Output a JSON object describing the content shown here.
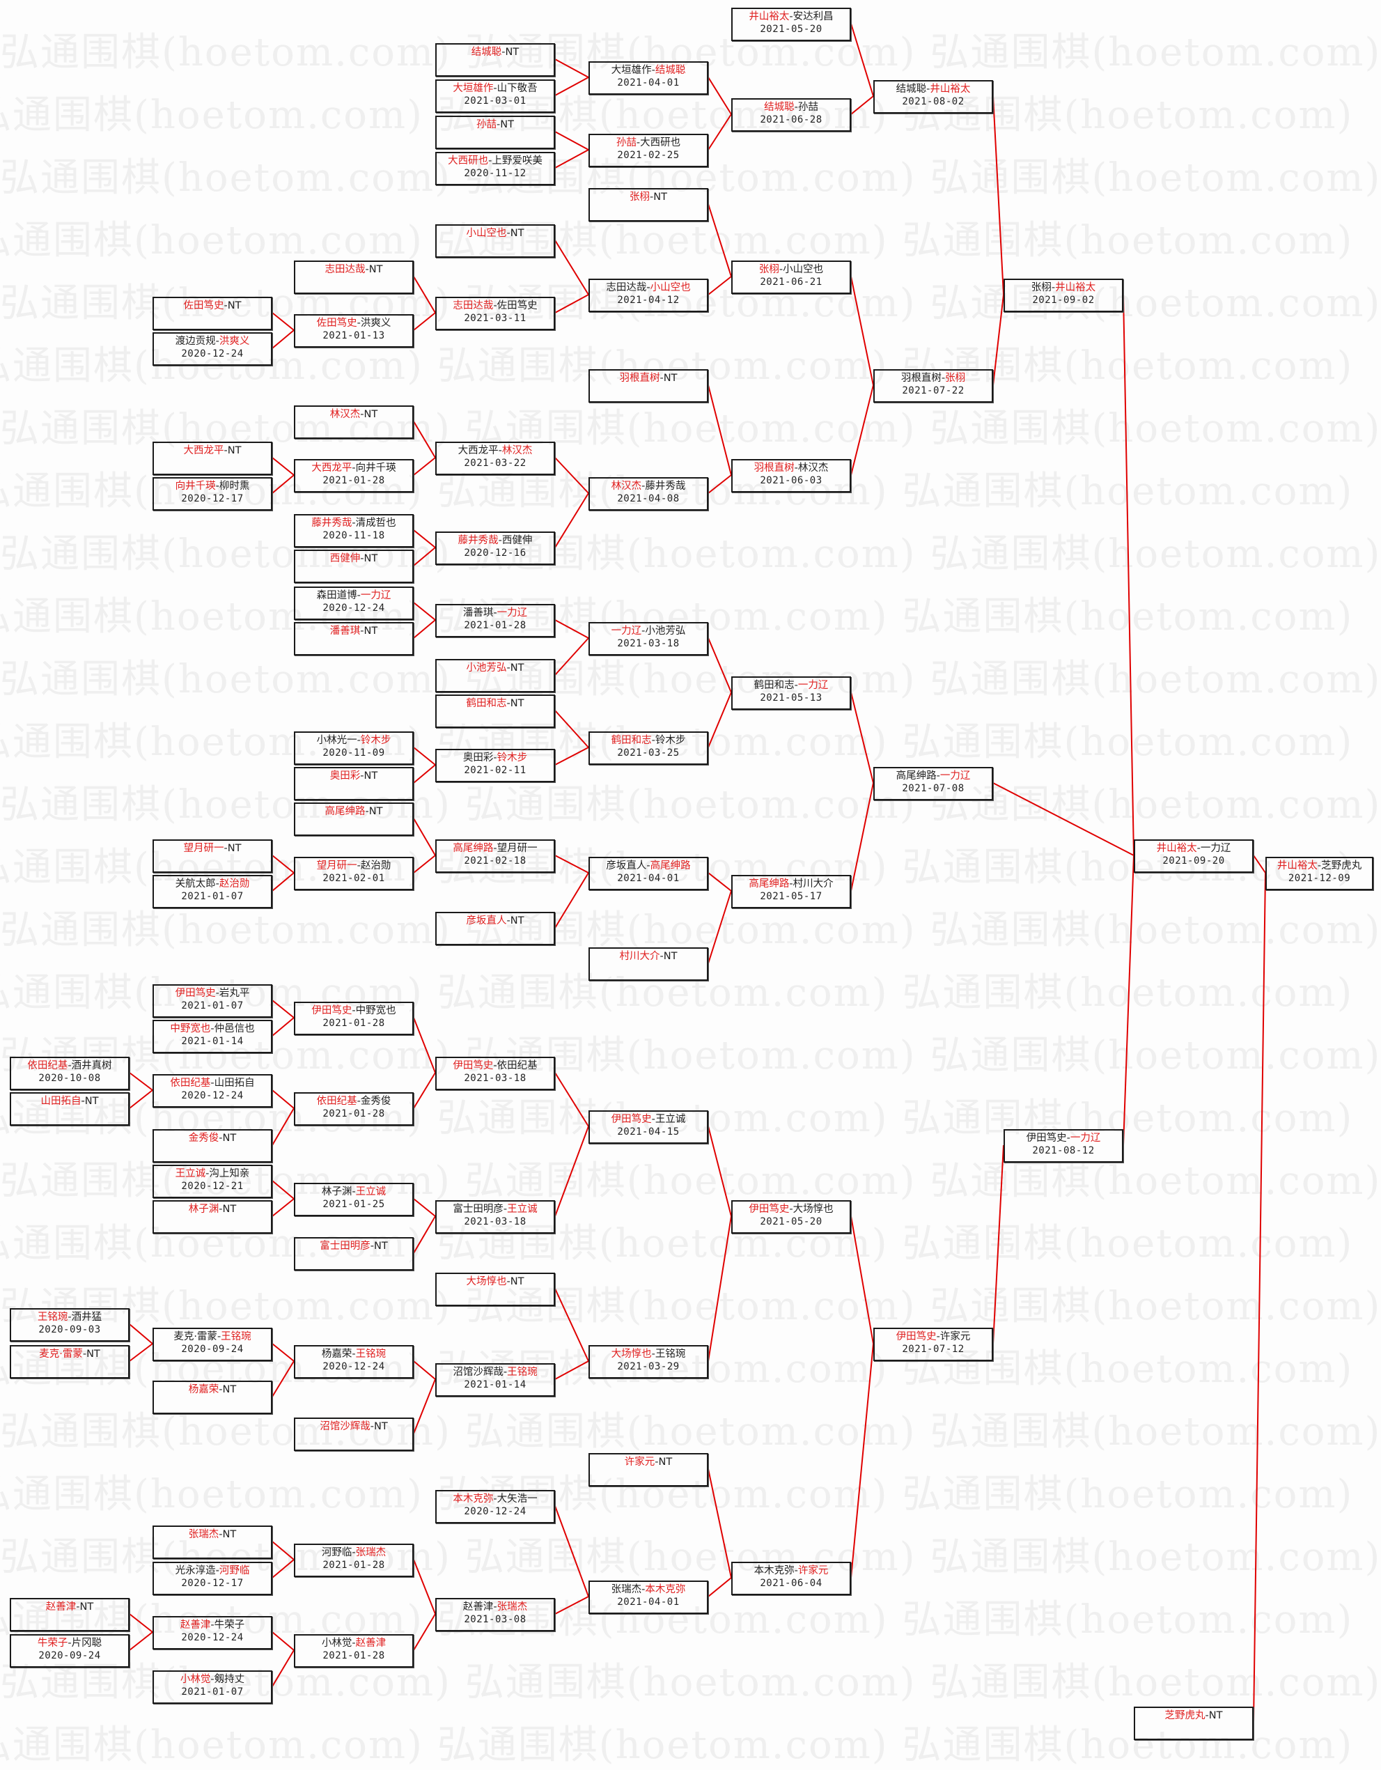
{
  "watermark": "弘通围棋(hoetom.com)",
  "colors": {
    "winner": "#e02020",
    "connector": "#e00000",
    "border": "#1a1a1a",
    "text": "#222222"
  },
  "boxes": [
    {
      "p1": "井山裕太",
      "p2": "安达利昌",
      "w": 1,
      "date": "2021-05-20"
    },
    {
      "p1": "结城聪",
      "p2": "NT",
      "w": 1
    },
    {
      "p1": "大垣雄作",
      "p2": "山下敬吾",
      "w": 1,
      "date": "2021-03-01"
    },
    {
      "p1": "孙喆",
      "p2": "NT",
      "w": 1
    },
    {
      "p1": "大西研也",
      "p2": "上野爱咲美",
      "w": 1,
      "date": "2020-11-12"
    },
    {
      "p1": "大垣雄作",
      "p2": "结城聪",
      "w": 2,
      "date": "2021-04-01"
    },
    {
      "p1": "孙喆",
      "p2": "大西研也",
      "w": 1,
      "date": "2021-02-25"
    },
    {
      "p1": "结城聪",
      "p2": "孙喆",
      "w": 1,
      "date": "2021-06-28"
    },
    {
      "p1": "结城聪",
      "p2": "井山裕太",
      "w": 2,
      "date": "2021-08-02"
    },
    {
      "p1": "张栩",
      "p2": "NT",
      "w": 1
    },
    {
      "p1": "小山空也",
      "p2": "NT",
      "w": 1
    },
    {
      "p1": "志田达哉",
      "p2": "NT",
      "w": 1
    },
    {
      "p1": "佐田笃史",
      "p2": "NT",
      "w": 1
    },
    {
      "p1": "渡边贡规",
      "p2": "洪爽义",
      "w": 2,
      "date": "2020-12-24"
    },
    {
      "p1": "佐田笃史",
      "p2": "洪爽义",
      "w": 1,
      "date": "2021-01-13"
    },
    {
      "p1": "志田达哉",
      "p2": "佐田笃史",
      "w": 1,
      "date": "2021-03-11"
    },
    {
      "p1": "志田达哉",
      "p2": "小山空也",
      "w": 2,
      "date": "2021-04-12"
    },
    {
      "p1": "张栩",
      "p2": "小山空也",
      "w": 1,
      "date": "2021-06-21"
    },
    {
      "p1": "张栩",
      "p2": "井山裕太",
      "w": 2,
      "date": "2021-09-02"
    },
    {
      "p1": "羽根直树",
      "p2": "NT",
      "w": 1
    },
    {
      "p1": "林汉杰",
      "p2": "NT",
      "w": 1
    },
    {
      "p1": "大西龙平",
      "p2": "NT",
      "w": 1
    },
    {
      "p1": "向井千瑛",
      "p2": "柳时熏",
      "w": 1,
      "date": "2020-12-17"
    },
    {
      "p1": "大西龙平",
      "p2": "向井千瑛",
      "w": 1,
      "date": "2021-01-28"
    },
    {
      "p1": "大西龙平",
      "p2": "林汉杰",
      "w": 2,
      "date": "2021-03-22"
    },
    {
      "p1": "藤井秀哉",
      "p2": "清成哲也",
      "w": 1,
      "date": "2020-11-18"
    },
    {
      "p1": "西健伸",
      "p2": "NT",
      "w": 1
    },
    {
      "p1": "藤井秀哉",
      "p2": "西健伸",
      "w": 1,
      "date": "2020-12-16"
    },
    {
      "p1": "林汉杰",
      "p2": "藤井秀哉",
      "w": 1,
      "date": "2021-04-08"
    },
    {
      "p1": "羽根直树",
      "p2": "林汉杰",
      "w": 1,
      "date": "2021-06-03"
    },
    {
      "p1": "羽根直树",
      "p2": "张栩",
      "w": 2,
      "date": "2021-07-22"
    },
    {
      "p1": "森田道博",
      "p2": "一力辽",
      "w": 2,
      "date": "2020-12-24"
    },
    {
      "p1": "潘善琪",
      "p2": "NT",
      "w": 1
    },
    {
      "p1": "潘善琪",
      "p2": "一力辽",
      "w": 2,
      "date": "2021-01-28"
    },
    {
      "p1": "小池芳弘",
      "p2": "NT",
      "w": 1
    },
    {
      "p1": "一力辽",
      "p2": "小池芳弘",
      "w": 1,
      "date": "2021-03-18"
    },
    {
      "p1": "鹤田和志",
      "p2": "NT",
      "w": 1
    },
    {
      "p1": "小林光一",
      "p2": "铃木步",
      "w": 2,
      "date": "2020-11-09"
    },
    {
      "p1": "奥田彩",
      "p2": "NT",
      "w": 1
    },
    {
      "p1": "奥田彩",
      "p2": "铃木步",
      "w": 2,
      "date": "2021-02-11"
    },
    {
      "p1": "鹤田和志",
      "p2": "铃木步",
      "w": 1,
      "date": "2021-03-25"
    },
    {
      "p1": "鹤田和志",
      "p2": "一力辽",
      "w": 2,
      "date": "2021-05-13"
    },
    {
      "p1": "高尾绅路",
      "p2": "NT",
      "w": 1
    },
    {
      "p1": "望月研一",
      "p2": "NT",
      "w": 1
    },
    {
      "p1": "关航太郎",
      "p2": "赵治勋",
      "w": 2,
      "date": "2021-01-07"
    },
    {
      "p1": "望月研一",
      "p2": "赵治勋",
      "w": 1,
      "date": "2021-02-01"
    },
    {
      "p1": "高尾绅路",
      "p2": "望月研一",
      "w": 1,
      "date": "2021-02-18"
    },
    {
      "p1": "彦坂直人",
      "p2": "NT",
      "w": 1
    },
    {
      "p1": "彦坂直人",
      "p2": "高尾绅路",
      "w": 2,
      "date": "2021-04-01"
    },
    {
      "p1": "村川大介",
      "p2": "NT",
      "w": 1
    },
    {
      "p1": "高尾绅路",
      "p2": "村川大介",
      "w": 1,
      "date": "2021-05-17"
    },
    {
      "p1": "高尾绅路",
      "p2": "一力辽",
      "w": 2,
      "date": "2021-07-08"
    },
    {
      "p1": "井山裕太",
      "p2": "一力辽",
      "w": 1,
      "date": "2021-09-20"
    },
    {
      "p1": "井山裕太",
      "p2": "芝野虎丸",
      "w": 1,
      "date": "2021-12-09"
    },
    {
      "p1": "伊田笃史",
      "p2": "岩丸平",
      "w": 1,
      "date": "2021-01-07"
    },
    {
      "p1": "中野宽也",
      "p2": "仲邑信也",
      "w": 1,
      "date": "2021-01-14"
    },
    {
      "p1": "伊田笃史",
      "p2": "中野宽也",
      "w": 1,
      "date": "2021-01-28"
    },
    {
      "p1": "依田纪基",
      "p2": "酒井真树",
      "w": 1,
      "date": "2020-10-08"
    },
    {
      "p1": "山田拓自",
      "p2": "NT",
      "w": 1
    },
    {
      "p1": "依田纪基",
      "p2": "山田拓自",
      "w": 1,
      "date": "2020-12-24"
    },
    {
      "p1": "金秀俊",
      "p2": "NT",
      "w": 1
    },
    {
      "p1": "依田纪基",
      "p2": "金秀俊",
      "w": 1,
      "date": "2021-01-28"
    },
    {
      "p1": "伊田笃史",
      "p2": "依田纪基",
      "w": 1,
      "date": "2021-03-18"
    },
    {
      "p1": "王立诚",
      "p2": "沟上知亲",
      "w": 1,
      "date": "2020-12-21"
    },
    {
      "p1": "林子渊",
      "p2": "NT",
      "w": 1
    },
    {
      "p1": "林子渊",
      "p2": "王立诚",
      "w": 2,
      "date": "2021-01-25"
    },
    {
      "p1": "富士田明彦",
      "p2": "NT",
      "w": 1
    },
    {
      "p1": "富士田明彦",
      "p2": "王立诚",
      "w": 2,
      "date": "2021-03-18"
    },
    {
      "p1": "伊田笃史",
      "p2": "王立诚",
      "w": 1,
      "date": "2021-04-15"
    },
    {
      "p1": "大场惇也",
      "p2": "NT",
      "w": 1
    },
    {
      "p1": "王铭琬",
      "p2": "酒井猛",
      "w": 1,
      "date": "2020-09-03"
    },
    {
      "p1": "麦克·雷蒙",
      "p2": "NT",
      "w": 1
    },
    {
      "p1": "麦克·雷蒙",
      "p2": "王铭琬",
      "w": 2,
      "date": "2020-09-24"
    },
    {
      "p1": "杨嘉荣",
      "p2": "NT",
      "w": 1
    },
    {
      "p1": "杨嘉荣",
      "p2": "王铭琬",
      "w": 2,
      "date": "2020-12-24"
    },
    {
      "p1": "沼馆沙辉哉",
      "p2": "NT",
      "w": 1
    },
    {
      "p1": "沼馆沙辉哉",
      "p2": "王铭琬",
      "w": 2,
      "date": "2021-01-14"
    },
    {
      "p1": "大场惇也",
      "p2": "王铭琬",
      "w": 1,
      "date": "2021-03-29"
    },
    {
      "p1": "伊田笃史",
      "p2": "大场惇也",
      "w": 1,
      "date": "2021-05-20"
    },
    {
      "p1": "许家元",
      "p2": "NT",
      "w": 1
    },
    {
      "p1": "本木克弥",
      "p2": "大矢浩一",
      "w": 1,
      "date": "2020-12-24"
    },
    {
      "p1": "张瑞杰",
      "p2": "NT",
      "w": 1
    },
    {
      "p1": "光永淳造",
      "p2": "河野临",
      "w": 2,
      "date": "2020-12-17"
    },
    {
      "p1": "河野临",
      "p2": "张瑞杰",
      "w": 2,
      "date": "2021-01-28"
    },
    {
      "p1": "赵善津",
      "p2": "NT",
      "w": 1
    },
    {
      "p1": "牛荣子",
      "p2": "片冈聪",
      "w": 1,
      "date": "2020-09-24"
    },
    {
      "p1": "赵善津",
      "p2": "牛荣子",
      "w": 1,
      "date": "2020-12-24"
    },
    {
      "p1": "小林觉",
      "p2": "剱持丈",
      "w": 1,
      "date": "2021-01-07"
    },
    {
      "p1": "小林觉",
      "p2": "赵善津",
      "w": 2,
      "date": "2021-01-28"
    },
    {
      "p1": "赵善津",
      "p2": "张瑞杰",
      "w": 2,
      "date": "2021-03-08"
    },
    {
      "p1": "张瑞杰",
      "p2": "本木克弥",
      "w": 2,
      "date": "2021-04-01"
    },
    {
      "p1": "本木克弥",
      "p2": "许家元",
      "w": 2,
      "date": "2021-06-04"
    },
    {
      "p1": "伊田笃史",
      "p2": "许家元",
      "w": 1,
      "date": "2021-07-12"
    },
    {
      "p1": "伊田笃史",
      "p2": "一力辽",
      "w": 2,
      "date": "2021-08-12"
    },
    {
      "p1": "芝野虎丸",
      "p2": "NT",
      "w": 1
    }
  ]
}
